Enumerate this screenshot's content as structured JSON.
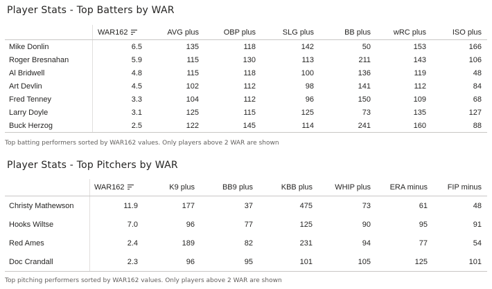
{
  "batters": {
    "title": "Player Stats - Top Batters by WAR",
    "caption": "Top batting performers sorted by WAR162 values. Only players above 2 WAR are shown",
    "columns": [
      "",
      "WAR162",
      "AVG plus",
      "OBP plus",
      "SLG plus",
      "BB plus",
      "wRC plus",
      "ISO plus"
    ],
    "sorted_column": "WAR162",
    "rows": [
      [
        "Mike Donlin",
        "6.5",
        "135",
        "118",
        "142",
        "50",
        "153",
        "166"
      ],
      [
        "Roger Bresnahan",
        "5.9",
        "115",
        "130",
        "113",
        "211",
        "143",
        "106"
      ],
      [
        "Al Bridwell",
        "4.8",
        "115",
        "118",
        "100",
        "136",
        "119",
        "48"
      ],
      [
        "Art Devlin",
        "4.5",
        "102",
        "112",
        "98",
        "141",
        "112",
        "84"
      ],
      [
        "Fred Tenney",
        "3.3",
        "104",
        "112",
        "96",
        "150",
        "109",
        "68"
      ],
      [
        "Larry Doyle",
        "3.1",
        "125",
        "115",
        "125",
        "73",
        "135",
        "127"
      ],
      [
        "Buck Herzog",
        "2.5",
        "122",
        "145",
        "114",
        "241",
        "160",
        "88"
      ]
    ]
  },
  "pitchers": {
    "title": "Player Stats - Top Pitchers by WAR",
    "caption": "Top pitching performers sorted by WAR162 values. Only players above 2 WAR are shown",
    "columns": [
      "",
      "WAR162",
      "K9 plus",
      "BB9 plus",
      "KBB plus",
      "WHIP plus",
      "ERA minus",
      "FIP minus"
    ],
    "sorted_column": "WAR162",
    "rows": [
      [
        "Christy Mathewson",
        "11.9",
        "177",
        "37",
        "475",
        "73",
        "61",
        "48"
      ],
      [
        "Hooks Wiltse",
        "7.0",
        "96",
        "77",
        "125",
        "90",
        "95",
        "91"
      ],
      [
        "Red Ames",
        "2.4",
        "189",
        "82",
        "231",
        "94",
        "77",
        "54"
      ],
      [
        "Doc Crandall",
        "2.3",
        "96",
        "95",
        "101",
        "105",
        "125",
        "101"
      ]
    ]
  },
  "colors": {
    "text": "#252423",
    "caption": "#605e5c",
    "grid": "#c8c6c4"
  },
  "icons": {
    "sort": "sort-descending-icon"
  }
}
